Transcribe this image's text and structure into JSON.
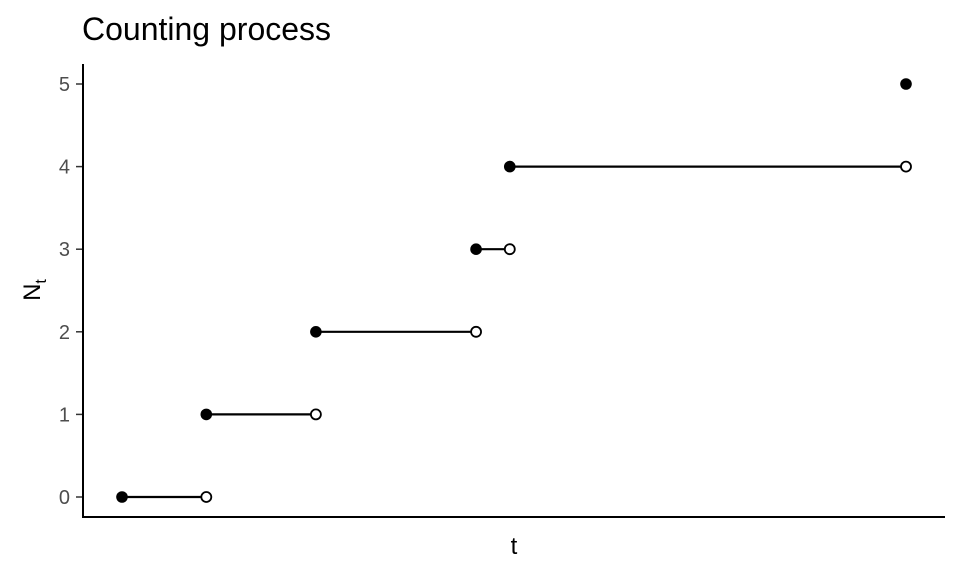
{
  "chart_data": {
    "type": "line",
    "subtype": "step-function",
    "title": "Counting process",
    "xlabel": "t",
    "ylabel": "N",
    "ylabel_subscript": "t",
    "x_ticks_shown": false,
    "y_ticks": [
      0,
      1,
      2,
      3,
      4,
      5
    ],
    "ylim": [
      0,
      5
    ],
    "grid": false,
    "legend": "none",
    "segment_color": "#000000",
    "segments": [
      {
        "x_start": 0.0,
        "x_end": 1.0,
        "y": 0
      },
      {
        "x_start": 1.0,
        "x_end": 2.3,
        "y": 1
      },
      {
        "x_start": 2.3,
        "x_end": 4.2,
        "y": 2
      },
      {
        "x_start": 4.2,
        "x_end": 4.6,
        "y": 3
      },
      {
        "x_start": 4.6,
        "x_end": 9.3,
        "y": 4
      }
    ],
    "final_point": {
      "x": 9.3,
      "y": 5
    }
  }
}
